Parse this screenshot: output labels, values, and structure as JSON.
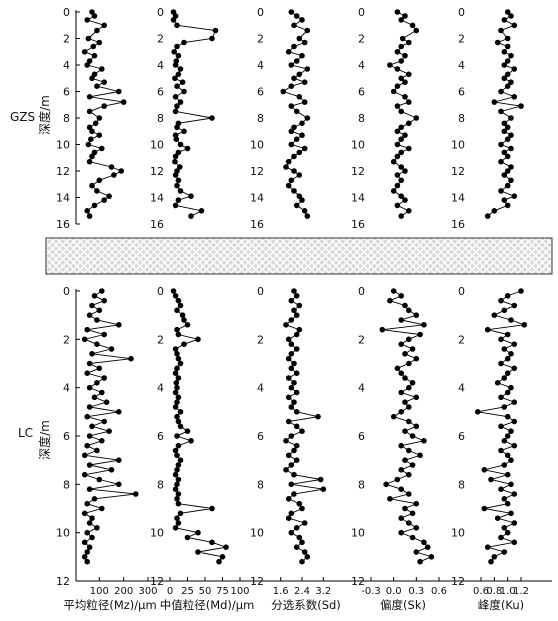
{
  "chart_data": {
    "type": "scatter",
    "panels": [
      {
        "name": "GZS",
        "ylabel": "深度/m",
        "ylim": [
          0,
          16
        ],
        "yticks": [
          0,
          2,
          4,
          6,
          8,
          10,
          12,
          14,
          16
        ],
        "depths": [
          0,
          0.3,
          0.6,
          1.0,
          1.4,
          2.0,
          2.3,
          2.6,
          3.0,
          3.3,
          3.7,
          4.0,
          4.3,
          4.7,
          5.0,
          5.3,
          5.6,
          6.0,
          6.4,
          6.8,
          7.1,
          7.5,
          8.0,
          8.4,
          8.7,
          9.0,
          9.3,
          9.6,
          10.0,
          10.3,
          10.6,
          10.9,
          11.3,
          11.7,
          12.0,
          12.3,
          12.7,
          13.1,
          13.5,
          13.9,
          14.2,
          14.6,
          15.0,
          15.4
        ],
        "variables": [
          {
            "key": "Mz",
            "values": [
              70,
              80,
              50,
              120,
              90,
              55,
              100,
              75,
              40,
              80,
              60,
              50,
              110,
              80,
              70,
              120,
              90,
              180,
              60,
              200,
              120,
              60,
              100,
              85,
              60,
              70,
              100,
              65,
              55,
              110,
              80,
              70,
              60,
              150,
              190,
              160,
              100,
              70,
              90,
              140,
              120,
              80,
              50,
              60
            ]
          },
          {
            "key": "Md",
            "values": [
              5,
              8,
              5,
              10,
              65,
              60,
              20,
              10,
              6,
              12,
              9,
              8,
              15,
              12,
              7,
              18,
              10,
              20,
              8,
              15,
              10,
              8,
              60,
              12,
              10,
              20,
              8,
              9,
              15,
              25,
              12,
              8,
              7,
              14,
              10,
              8,
              12,
              10,
              15,
              30,
              12,
              8,
              45,
              30
            ]
          },
          {
            "key": "Sd",
            "values": [
              2.0,
              2.2,
              2.4,
              2.1,
              2.6,
              2.3,
              2.5,
              2.1,
              1.9,
              2.4,
              2.2,
              2.0,
              2.6,
              2.3,
              2.1,
              2.5,
              2.0,
              1.7,
              2.3,
              2.5,
              2.0,
              2.2,
              2.6,
              2.4,
              2.1,
              2.0,
              2.4,
              2.2,
              2.0,
              2.5,
              2.3,
              2.1,
              1.9,
              1.8,
              2.1,
              2.3,
              2.0,
              1.9,
              2.1,
              2.3,
              2.4,
              2.2,
              2.5,
              2.6
            ]
          },
          {
            "key": "Sk",
            "values": [
              0.05,
              0.15,
              0.1,
              0.25,
              0.3,
              0.12,
              0.2,
              0.1,
              0.05,
              0.15,
              0.1,
              -0.05,
              0.05,
              0.2,
              0.1,
              0.15,
              0.05,
              0.0,
              0.15,
              0.2,
              0.05,
              0.1,
              0.3,
              0.2,
              0.1,
              0.05,
              0.15,
              0.1,
              0.05,
              0.2,
              0.1,
              0.05,
              0.0,
              0.1,
              0.15,
              0.05,
              0.1,
              0.05,
              0.0,
              0.1,
              0.15,
              0.05,
              0.2,
              0.1
            ]
          },
          {
            "key": "Ku",
            "values": [
              1.0,
              1.05,
              0.95,
              1.1,
              0.9,
              1.0,
              0.85,
              1.0,
              0.95,
              1.05,
              1.0,
              0.95,
              1.1,
              1.0,
              0.95,
              1.05,
              1.0,
              0.9,
              1.1,
              0.8,
              1.2,
              0.9,
              1.05,
              0.95,
              1.0,
              0.95,
              1.05,
              1.0,
              0.9,
              1.05,
              0.95,
              1.0,
              0.9,
              1.05,
              1.0,
              0.95,
              1.05,
              1.0,
              0.9,
              1.1,
              0.95,
              1.0,
              0.8,
              0.7
            ]
          }
        ]
      },
      {
        "name": "LC",
        "ylabel": "深度/m",
        "ylim": [
          0,
          12
        ],
        "yticks": [
          0,
          2,
          4,
          6,
          8,
          10,
          12
        ],
        "depths": [
          0,
          0.2,
          0.4,
          0.6,
          0.8,
          1.0,
          1.2,
          1.4,
          1.6,
          1.8,
          2.0,
          2.2,
          2.4,
          2.6,
          2.8,
          3.0,
          3.2,
          3.4,
          3.6,
          3.8,
          4.0,
          4.2,
          4.4,
          4.6,
          4.8,
          5.0,
          5.2,
          5.4,
          5.6,
          5.8,
          6.0,
          6.2,
          6.4,
          6.6,
          6.8,
          7.0,
          7.2,
          7.4,
          7.6,
          7.8,
          8.0,
          8.2,
          8.4,
          8.6,
          8.8,
          9.0,
          9.2,
          9.4,
          9.6,
          9.8,
          10.0,
          10.2,
          10.4,
          10.6,
          10.8,
          11.0,
          11.2
        ],
        "variables": [
          {
            "key": "Mz",
            "values": [
              110,
              80,
              120,
              70,
              100,
              60,
              90,
              180,
              50,
              120,
              40,
              90,
              150,
              70,
              230,
              60,
              100,
              50,
              120,
              90,
              60,
              110,
              80,
              130,
              60,
              180,
              50,
              120,
              70,
              140,
              60,
              110,
              50,
              90,
              40,
              180,
              60,
              150,
              40,
              100,
              180,
              60,
              250,
              80,
              50,
              110,
              40,
              70,
              60,
              90,
              50,
              70,
              40,
              60,
              50,
              40,
              50
            ]
          },
          {
            "key": "Md",
            "values": [
              5,
              8,
              12,
              15,
              10,
              18,
              20,
              25,
              10,
              12,
              40,
              20,
              8,
              10,
              12,
              15,
              10,
              8,
              12,
              9,
              10,
              8,
              12,
              10,
              8,
              15,
              10,
              12,
              15,
              25,
              10,
              30,
              12,
              8,
              10,
              15,
              12,
              10,
              8,
              12,
              10,
              8,
              12,
              10,
              12,
              60,
              15,
              10,
              12,
              8,
              40,
              25,
              60,
              80,
              40,
              75,
              70
            ]
          },
          {
            "key": "Sd",
            "values": [
              2.1,
              2.2,
              2.0,
              2.3,
              2.1,
              2.2,
              2.0,
              1.8,
              2.3,
              2.2,
              1.9,
              2.0,
              2.2,
              2.0,
              1.9,
              2.1,
              2.0,
              2.2,
              1.9,
              2.1,
              2.0,
              2.2,
              1.9,
              2.1,
              2.0,
              2.2,
              3.0,
              1.9,
              2.2,
              2.4,
              2.0,
              1.8,
              2.2,
              2.1,
              1.9,
              2.2,
              2.0,
              1.8,
              2.1,
              3.1,
              2.0,
              3.2,
              2.1,
              1.9,
              2.3,
              2.4,
              2.0,
              1.9,
              2.5,
              2.2,
              2.0,
              2.3,
              2.4,
              2.2,
              2.5,
              2.6,
              2.4
            ]
          },
          {
            "key": "Sk",
            "values": [
              0.0,
              0.1,
              -0.05,
              0.15,
              0.2,
              0.3,
              0.1,
              0.4,
              -0.15,
              0.35,
              0.2,
              0.1,
              0.25,
              0.15,
              0.3,
              0.2,
              0.05,
              0.1,
              0.15,
              0.25,
              0.2,
              0.1,
              0.3,
              0.15,
              0.2,
              0.1,
              0.0,
              0.2,
              0.3,
              0.15,
              0.25,
              0.4,
              0.1,
              0.2,
              0.35,
              0.15,
              0.25,
              0.1,
              0.2,
              0.05,
              -0.1,
              0.1,
              0.2,
              -0.05,
              0.3,
              0.15,
              0.25,
              0.1,
              0.2,
              0.3,
              0.1,
              0.25,
              0.4,
              0.45,
              0.3,
              0.5,
              0.35
            ]
          },
          {
            "key": "Ku",
            "values": [
              1.2,
              1.0,
              0.9,
              1.1,
              0.95,
              0.8,
              1.05,
              1.25,
              0.7,
              1.0,
              0.9,
              1.1,
              0.95,
              1.05,
              1.0,
              0.9,
              1.1,
              1.0,
              0.95,
              0.85,
              1.05,
              1.0,
              0.9,
              1.1,
              0.95,
              0.55,
              1.0,
              1.1,
              0.9,
              1.05,
              1.0,
              0.95,
              1.1,
              0.9,
              1.0,
              1.05,
              0.95,
              0.65,
              1.0,
              0.75,
              1.05,
              0.9,
              1.1,
              0.95,
              1.0,
              0.65,
              1.05,
              0.85,
              1.1,
              0.95,
              1.0,
              0.9,
              1.1,
              0.7,
              0.95,
              0.8,
              0.75
            ]
          }
        ]
      }
    ],
    "x_axes": [
      {
        "key": "Mz",
        "label": "平均粒径(Mz)/μm",
        "xlim": [
          0,
          300
        ],
        "ticks": [
          100,
          200,
          300
        ],
        "tick_labels": [
          "100",
          "200",
          "300"
        ]
      },
      {
        "key": "Md",
        "label": "中值粒径(Md)/μm",
        "xlim": [
          0,
          100
        ],
        "ticks": [
          0,
          25,
          50,
          75,
          100
        ],
        "tick_labels": [
          "0",
          "25",
          "50",
          "75",
          "100"
        ]
      },
      {
        "key": "Sd",
        "label": "分选系数(Sd)",
        "xlim": [
          1.2,
          3.6
        ],
        "ticks": [
          1.6,
          2.4,
          3.2
        ],
        "tick_labels": [
          "1.6",
          "2.4",
          "3.2"
        ]
      },
      {
        "key": "Sk",
        "label": "偏度(Sk)",
        "xlim": [
          -0.3,
          0.6
        ],
        "ticks": [
          -0.3,
          0.0,
          0.3,
          0.6
        ],
        "tick_labels": [
          "-0.3",
          "0.0",
          "0.3",
          "0.6"
        ]
      },
      {
        "key": "Ku",
        "label": "峰度(Ku)",
        "xlim": [
          0.45,
          1.35
        ],
        "ticks": [
          0.6,
          0.8,
          1.0,
          1.2
        ],
        "tick_labels": [
          "0.6",
          "0.8",
          "1.0",
          "1.2"
        ]
      }
    ],
    "separator": "hatched band",
    "grid": false,
    "colors": {
      "marker": "#000000",
      "axis": "#000000",
      "hatch_bg": "#d8d8d8",
      "hatch_line": "#ffffff"
    }
  }
}
